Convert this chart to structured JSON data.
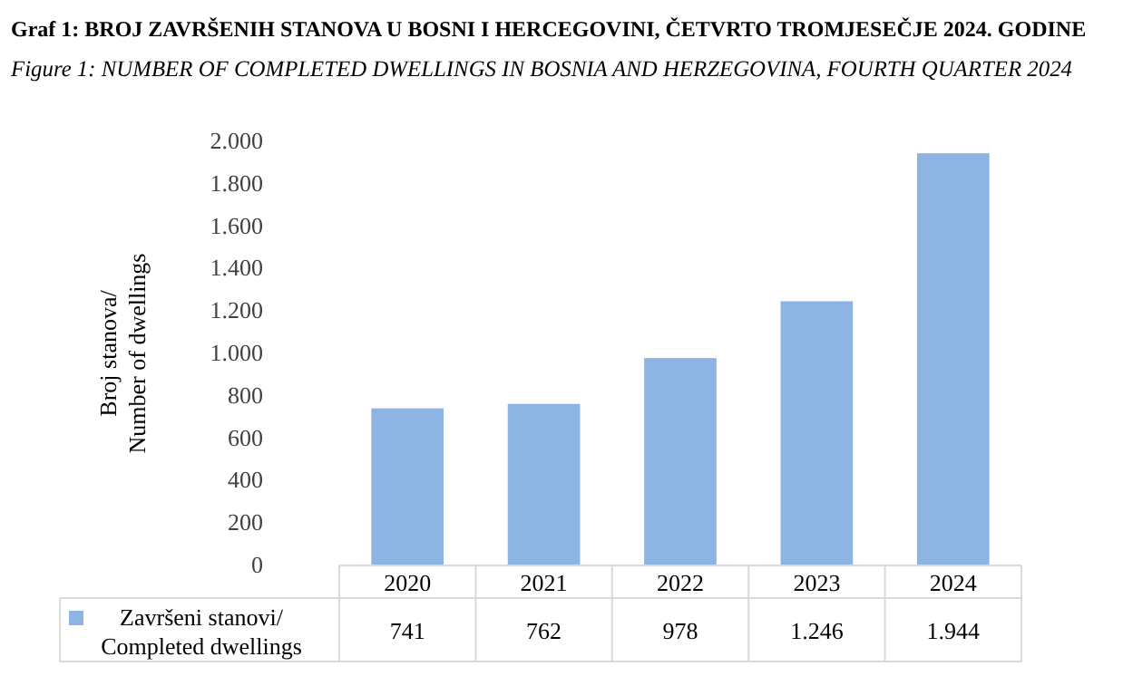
{
  "chart_data": {
    "type": "bar",
    "title": "Graf 1: BROJ ZAVRŠENIH STANOVA U BOSNI I HERCEGOVINI, ČETVRTO TROMJESEČJE 2024. GODINE",
    "subtitle": "Figure 1: NUMBER OF COMPLETED DWELLINGS IN BOSNIA AND HERZEGOVINA, FOURTH QUARTER 2024",
    "ylabel": "Broj stanova/\nNumber of dwellings",
    "categories": [
      "2020",
      "2021",
      "2022",
      "2023",
      "2024"
    ],
    "series": [
      {
        "name": "Završeni stanovi/\nCompleted dwellings",
        "color": "#8db4e2",
        "values": [
          741,
          762,
          978,
          1246,
          1944
        ],
        "value_labels": [
          "741",
          "762",
          "978",
          "1.246",
          "1.944"
        ]
      }
    ],
    "ylim": [
      0,
      2000
    ],
    "yticks": [
      0,
      {
        "value": 200,
        "label": "200"
      },
      {
        "value": 400,
        "label": "400"
      },
      {
        "value": 600,
        "label": "600"
      },
      {
        "value": 800,
        "label": "800"
      },
      {
        "value": 1000,
        "label": "1.000"
      },
      {
        "value": 1200,
        "label": "1.200"
      },
      {
        "value": 1400,
        "label": "1.400"
      },
      {
        "value": 1600,
        "label": "1.600"
      },
      {
        "value": 1800,
        "label": "1.800"
      },
      {
        "value": 2000,
        "label": "2.000"
      }
    ],
    "grid": false,
    "legend": "bottom left"
  }
}
